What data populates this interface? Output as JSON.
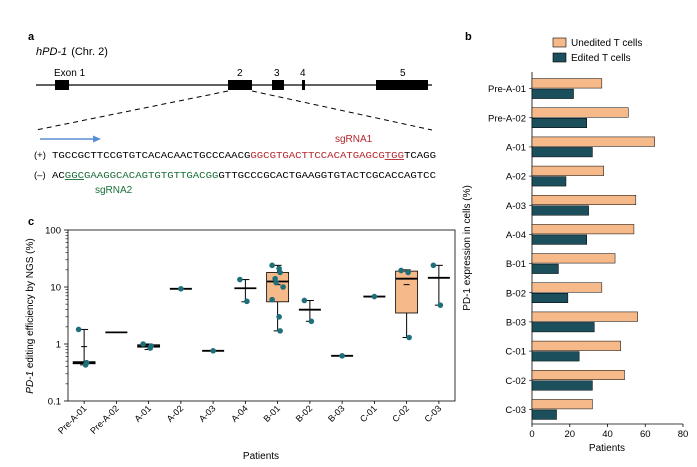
{
  "panel_labels": {
    "a": "a",
    "b": "b",
    "c": "c"
  },
  "gene": {
    "name": "hPD-1",
    "chromosome": "(Chr. 2)"
  },
  "exons": [
    "Exon 1",
    "2",
    "3",
    "4",
    "5"
  ],
  "sequence": {
    "plus_strand_label": "(+)",
    "plus_black_1": "TGCCGCTTCCGTGTCACACAACTGCCCAACG",
    "plus_red": "GGCGTGACTTCCACATGAGCG",
    "plus_red_pam": "TGG",
    "plus_black_2": "TCAGG",
    "minus_strand_label": "(–)",
    "minus_black_1": "AC",
    "minus_green_pam": "GGC",
    "minus_green": "GAAGGCACAGTGTGTTGACGG",
    "minus_black_2": "GTTGCCCGCACTGAAGGTGTACTCGCACCAGTCC",
    "sgrna1": "sgRNA1",
    "sgrna2": "sgRNA2"
  },
  "colors": {
    "unedited": "#f5b98a",
    "edited": "#1b4f5c",
    "sg1": "#b5272d",
    "sg2": "#1a6e38",
    "arrow": "#5b8dd6",
    "dot": "#1d6f7a"
  },
  "chart_data": [
    {
      "type": "box",
      "panel": "c",
      "title": "",
      "xlabel": "Patients",
      "ylabel_italic": "PD-1",
      "ylabel_rest": " editing efficiency by NGS (%)",
      "yscale": "log",
      "ylim": [
        0.1,
        100
      ],
      "yticks": [
        "0.1",
        "1",
        "10",
        "100"
      ],
      "categories": [
        "Pre-A-01",
        "Pre-A-02",
        "A-01",
        "A-02",
        "A-03",
        "A-04",
        "B-01",
        "B-02",
        "B-03",
        "C-01",
        "C-02",
        "C-03"
      ],
      "groups": [
        {
          "name": "Pre-A-01",
          "min": 0.43,
          "q1": 0.45,
          "median": 0.47,
          "q3": 0.49,
          "max": 1.8,
          "mean": 0.9,
          "box": false,
          "points": [
            1.8,
            0.43,
            0.47
          ]
        },
        {
          "name": "Pre-A-02",
          "min": 1.6,
          "q1": 1.6,
          "median": 1.6,
          "q3": 1.6,
          "max": 1.6,
          "box": false,
          "points": []
        },
        {
          "name": "A-01",
          "min": 0.8,
          "q1": 0.88,
          "median": 0.92,
          "q3": 0.97,
          "max": 1.0,
          "box": false,
          "points": [
            1.0,
            0.85,
            0.92
          ]
        },
        {
          "name": "A-02",
          "min": 9.3,
          "q1": 9.3,
          "median": 9.3,
          "q3": 9.3,
          "max": 9.3,
          "box": false,
          "points": [
            9.3
          ]
        },
        {
          "name": "A-03",
          "min": 0.76,
          "q1": 0.76,
          "median": 0.76,
          "q3": 0.76,
          "max": 0.76,
          "box": false,
          "points": [
            0.76
          ]
        },
        {
          "name": "A-04",
          "min": 5.5,
          "q1": 9.5,
          "median": 9.5,
          "q3": 9.5,
          "max": 13.5,
          "box": false,
          "points": [
            13.5,
            5.6
          ]
        },
        {
          "name": "B-01",
          "min": 1.7,
          "q1": 5.5,
          "median": 12.5,
          "q3": 18,
          "max": 24,
          "mean": 11,
          "box": true,
          "points": [
            24,
            21,
            18,
            14,
            12,
            10,
            6,
            3,
            1.7
          ]
        },
        {
          "name": "B-02",
          "min": 2.5,
          "q1": 4.0,
          "median": 4.0,
          "q3": 4.0,
          "max": 5.8,
          "box": false,
          "points": [
            5.8,
            2.5
          ]
        },
        {
          "name": "B-03",
          "min": 0.62,
          "q1": 0.62,
          "median": 0.62,
          "q3": 0.62,
          "max": 0.62,
          "box": false,
          "points": [
            0.62
          ]
        },
        {
          "name": "C-01",
          "min": 6.8,
          "q1": 6.8,
          "median": 6.8,
          "q3": 6.8,
          "max": 6.8,
          "box": false,
          "points": [
            6.8
          ]
        },
        {
          "name": "C-02",
          "min": 1.3,
          "q1": 3.5,
          "median": 14,
          "q3": 19,
          "max": 20,
          "mean": 11,
          "box": true,
          "points": [
            19.5,
            18,
            1.3
          ]
        },
        {
          "name": "C-03",
          "min": 4.8,
          "q1": 14.5,
          "median": 14.5,
          "q3": 14.5,
          "max": 24,
          "box": false,
          "points": [
            24,
            4.8
          ]
        }
      ]
    },
    {
      "type": "bar",
      "orientation": "horizontal",
      "panel": "b",
      "xlabel": "Patients",
      "ylabel": "PD-1 expression in cells (%)",
      "xlim": [
        0,
        80
      ],
      "xticks": [
        "0",
        "20",
        "40",
        "60",
        "80"
      ],
      "categories": [
        "Pre-A-01",
        "Pre-A-02",
        "A-01",
        "A-02",
        "A-03",
        "A-04",
        "B-01",
        "B-02",
        "B-03",
        "C-01",
        "C-02",
        "C-03"
      ],
      "series": [
        {
          "name": "Unedited T cells",
          "values": [
            37,
            51,
            65,
            38,
            55,
            54,
            44,
            37,
            56,
            47,
            49,
            32
          ]
        },
        {
          "name": "Edited T cells",
          "values": [
            22,
            29,
            32,
            18,
            30,
            29,
            14,
            19,
            33,
            25,
            32,
            13
          ]
        }
      ],
      "legend": "top"
    }
  ]
}
